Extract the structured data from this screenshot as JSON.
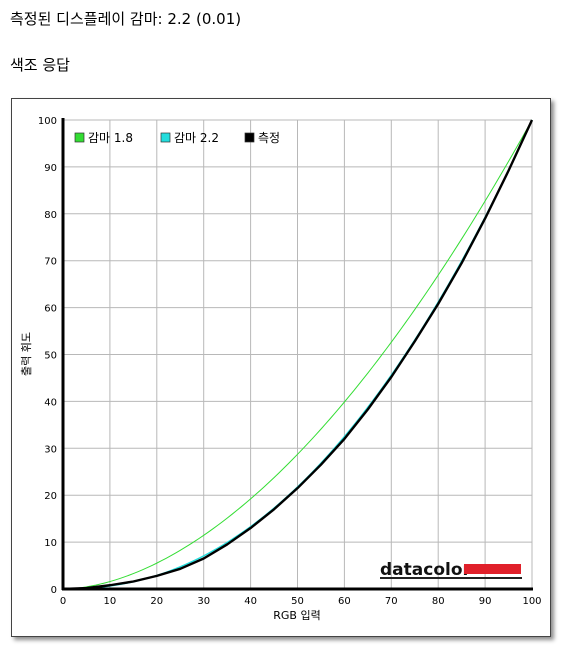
{
  "header": {
    "measured_gamma_text": "측정된 디스플레이 감마: 2.2 (0.01)",
    "section_title": "색조 응답"
  },
  "logo": {
    "text": "datacolor",
    "accent_color": "#e0202a"
  },
  "chart_data": {
    "type": "line",
    "xlabel": "RGB 입력",
    "ylabel": "출력 휘도",
    "xlim": [
      0,
      100
    ],
    "ylim": [
      0,
      100
    ],
    "xticks": [
      0,
      10,
      20,
      30,
      40,
      50,
      60,
      70,
      80,
      90,
      100
    ],
    "yticks": [
      0,
      10,
      20,
      30,
      40,
      50,
      60,
      70,
      80,
      90,
      100
    ],
    "grid": true,
    "legend_position": "top-left",
    "series": [
      {
        "name": "감마 1.8",
        "color": "#33dd33",
        "gamma": 1.8,
        "x": [
          0,
          5,
          10,
          15,
          20,
          25,
          30,
          35,
          40,
          45,
          50,
          55,
          60,
          65,
          70,
          75,
          80,
          85,
          90,
          95,
          100
        ],
        "y": [
          0,
          0.5,
          1.6,
          3.3,
          5.5,
          8.2,
          11.5,
          15.2,
          19.2,
          23.8,
          28.7,
          34.0,
          39.9,
          46.0,
          52.6,
          59.6,
          66.9,
          74.6,
          82.7,
          91.2,
          100
        ]
      },
      {
        "name": "감마 2.2",
        "color": "#22dddd",
        "gamma": 2.2,
        "x": [
          0,
          5,
          10,
          15,
          20,
          25,
          30,
          35,
          40,
          45,
          50,
          55,
          60,
          65,
          70,
          75,
          80,
          85,
          90,
          95,
          100
        ],
        "y": [
          0,
          0.1,
          0.6,
          1.5,
          2.9,
          4.7,
          7.1,
          9.9,
          13.3,
          17.3,
          21.8,
          26.8,
          32.5,
          38.8,
          45.6,
          53.1,
          61.2,
          69.9,
          79.3,
          89.3,
          100
        ]
      },
      {
        "name": "측정",
        "color": "#000000",
        "x": [
          0,
          5,
          10,
          15,
          20,
          25,
          30,
          35,
          40,
          45,
          50,
          55,
          60,
          65,
          70,
          75,
          80,
          85,
          90,
          95,
          100
        ],
        "y": [
          0,
          0.2,
          0.8,
          1.6,
          2.8,
          4.3,
          6.5,
          9.5,
          13.0,
          17.0,
          21.5,
          26.5,
          32.0,
          38.3,
          45.2,
          52.8,
          60.8,
          69.5,
          79.0,
          89.2,
          100
        ]
      }
    ]
  }
}
